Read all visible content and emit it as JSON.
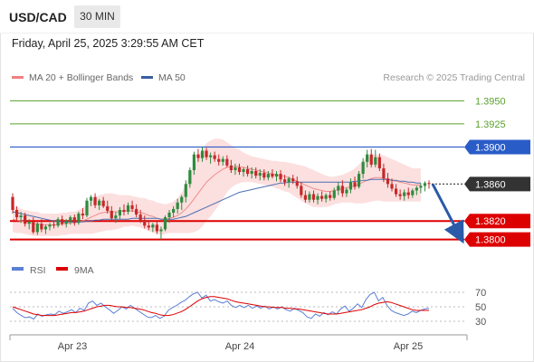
{
  "header": {
    "symbol": "USD/CAD",
    "interval": "30 MIN",
    "timestamp": "Friday, April 25, 2025 3:29:55 AM CET"
  },
  "legend": {
    "items": [
      {
        "label": "MA 20 + Bollinger Bands",
        "color": "#f08080"
      },
      {
        "label": "MA 50",
        "color": "#3a5fa0"
      }
    ],
    "credit": "Research © 2025 Trading Central"
  },
  "chart_data": [
    {
      "type": "candlestick",
      "title": "",
      "ylim": [
        1.3785,
        1.3965
      ],
      "x_ticks": [
        "Apr 23",
        "Apr 24",
        "Apr 25"
      ],
      "current_price": "1.3860",
      "levels": [
        {
          "value": 1.395,
          "label": "1.3950",
          "kind": "target",
          "color": "#5aa02c"
        },
        {
          "value": 1.3925,
          "label": "1.3925",
          "kind": "target",
          "color": "#5aa02c"
        },
        {
          "value": 1.39,
          "label": "1.3900",
          "kind": "pivot",
          "color": "#2a5cc8"
        },
        {
          "value": 1.382,
          "label": "1.3820",
          "kind": "support",
          "color": "#dd0000"
        },
        {
          "value": 1.38,
          "label": "1.3800",
          "kind": "support",
          "color": "#dd0000"
        }
      ],
      "projection": {
        "from": 1.386,
        "to": 1.38,
        "direction": "down"
      },
      "candles": [
        [
          1.3846,
          1.385,
          1.3828,
          1.3832
        ],
        [
          1.3832,
          1.3836,
          1.382,
          1.3824
        ],
        [
          1.3824,
          1.383,
          1.3818,
          1.3826
        ],
        [
          1.3826,
          1.3829,
          1.3814,
          1.3817
        ],
        [
          1.3817,
          1.3822,
          1.3811,
          1.3819
        ],
        [
          1.3819,
          1.3824,
          1.3806,
          1.3808
        ],
        [
          1.3808,
          1.382,
          1.3805,
          1.3817
        ],
        [
          1.3817,
          1.3822,
          1.3808,
          1.3811
        ],
        [
          1.3811,
          1.3816,
          1.3806,
          1.3814
        ],
        [
          1.3814,
          1.3818,
          1.381,
          1.3816
        ],
        [
          1.3816,
          1.382,
          1.3812,
          1.3815
        ],
        [
          1.3815,
          1.3824,
          1.3813,
          1.3822
        ],
        [
          1.3822,
          1.3826,
          1.3815,
          1.3817
        ],
        [
          1.3817,
          1.3822,
          1.3813,
          1.382
        ],
        [
          1.382,
          1.3826,
          1.3816,
          1.3824
        ],
        [
          1.3824,
          1.3827,
          1.3815,
          1.3818
        ],
        [
          1.3818,
          1.383,
          1.3816,
          1.3828
        ],
        [
          1.3828,
          1.3834,
          1.3822,
          1.3826
        ],
        [
          1.3826,
          1.3845,
          1.3824,
          1.3842
        ],
        [
          1.3842,
          1.3848,
          1.3836,
          1.3846
        ],
        [
          1.3846,
          1.385,
          1.3834,
          1.3837
        ],
        [
          1.3837,
          1.3844,
          1.3832,
          1.3842
        ],
        [
          1.3842,
          1.3846,
          1.3834,
          1.3836
        ],
        [
          1.3836,
          1.3842,
          1.3828,
          1.3831
        ],
        [
          1.3831,
          1.3836,
          1.382,
          1.3823
        ],
        [
          1.3823,
          1.383,
          1.3818,
          1.3826
        ],
        [
          1.3826,
          1.3835,
          1.3822,
          1.3832
        ],
        [
          1.3832,
          1.3838,
          1.3826,
          1.383
        ],
        [
          1.383,
          1.384,
          1.3827,
          1.3837
        ],
        [
          1.3837,
          1.3842,
          1.383,
          1.3833
        ],
        [
          1.3833,
          1.3838,
          1.3824,
          1.3827
        ],
        [
          1.3827,
          1.3832,
          1.3818,
          1.3821
        ],
        [
          1.3821,
          1.3826,
          1.3812,
          1.3815
        ],
        [
          1.3815,
          1.382,
          1.381,
          1.3813
        ],
        [
          1.3813,
          1.3818,
          1.3808,
          1.3816
        ],
        [
          1.3816,
          1.382,
          1.3806,
          1.3809
        ],
        [
          1.3809,
          1.3814,
          1.38,
          1.3811
        ],
        [
          1.3811,
          1.3826,
          1.3809,
          1.3824
        ],
        [
          1.3824,
          1.3832,
          1.3818,
          1.3829
        ],
        [
          1.3829,
          1.3836,
          1.3824,
          1.3833
        ],
        [
          1.3833,
          1.3844,
          1.3828,
          1.384
        ],
        [
          1.384,
          1.3848,
          1.3832,
          1.3846
        ],
        [
          1.3846,
          1.3864,
          1.384,
          1.386
        ],
        [
          1.386,
          1.3878,
          1.3856,
          1.3875
        ],
        [
          1.3875,
          1.3895,
          1.387,
          1.3892
        ],
        [
          1.3892,
          1.3898,
          1.3884,
          1.3888
        ],
        [
          1.3888,
          1.39,
          1.3884,
          1.3896
        ],
        [
          1.3896,
          1.3899,
          1.3886,
          1.3889
        ],
        [
          1.3889,
          1.3894,
          1.3882,
          1.3891
        ],
        [
          1.3891,
          1.3895,
          1.3884,
          1.3887
        ],
        [
          1.3887,
          1.3892,
          1.388,
          1.3884
        ],
        [
          1.3884,
          1.389,
          1.388,
          1.3887
        ],
        [
          1.3887,
          1.3891,
          1.3878,
          1.388
        ],
        [
          1.388,
          1.3886,
          1.3872,
          1.3875
        ],
        [
          1.3875,
          1.3882,
          1.387,
          1.3878
        ],
        [
          1.3878,
          1.3882,
          1.387,
          1.3873
        ],
        [
          1.3873,
          1.3878,
          1.3868,
          1.3876
        ],
        [
          1.3876,
          1.388,
          1.3868,
          1.3871
        ],
        [
          1.3871,
          1.3878,
          1.3866,
          1.3874
        ],
        [
          1.3874,
          1.3878,
          1.3866,
          1.3869
        ],
        [
          1.3869,
          1.3876,
          1.3864,
          1.3872
        ],
        [
          1.3872,
          1.3876,
          1.3864,
          1.3867
        ],
        [
          1.3867,
          1.3874,
          1.3864,
          1.3871
        ],
        [
          1.3871,
          1.3876,
          1.3866,
          1.3868
        ],
        [
          1.3868,
          1.3874,
          1.3863,
          1.3871
        ],
        [
          1.3871,
          1.3875,
          1.3862,
          1.3865
        ],
        [
          1.3865,
          1.387,
          1.3858,
          1.3862
        ],
        [
          1.3862,
          1.3868,
          1.3856,
          1.3866
        ],
        [
          1.3866,
          1.387,
          1.386,
          1.3863
        ],
        [
          1.3863,
          1.3868,
          1.3855,
          1.3858
        ],
        [
          1.3858,
          1.3862,
          1.3845,
          1.3848
        ],
        [
          1.3848,
          1.3853,
          1.384,
          1.3843
        ],
        [
          1.3843,
          1.3852,
          1.384,
          1.3849
        ],
        [
          1.3849,
          1.3853,
          1.384,
          1.3843
        ],
        [
          1.3843,
          1.385,
          1.3838,
          1.3847
        ],
        [
          1.3847,
          1.3852,
          1.3841,
          1.3844
        ],
        [
          1.3844,
          1.385,
          1.384,
          1.3848
        ],
        [
          1.3848,
          1.3852,
          1.3842,
          1.3845
        ],
        [
          1.3845,
          1.3856,
          1.3843,
          1.3853
        ],
        [
          1.3853,
          1.3862,
          1.3848,
          1.3858
        ],
        [
          1.3858,
          1.3864,
          1.3846,
          1.385
        ],
        [
          1.385,
          1.3856,
          1.3846,
          1.3854
        ],
        [
          1.3854,
          1.3866,
          1.385,
          1.3862
        ],
        [
          1.3862,
          1.3868,
          1.3854,
          1.3857
        ],
        [
          1.3857,
          1.3874,
          1.3855,
          1.3871
        ],
        [
          1.3871,
          1.3888,
          1.3866,
          1.3884
        ],
        [
          1.3884,
          1.3897,
          1.3878,
          1.3892
        ],
        [
          1.3892,
          1.3898,
          1.3878,
          1.3881
        ],
        [
          1.3881,
          1.3897,
          1.3878,
          1.3889
        ],
        [
          1.3889,
          1.3893,
          1.3874,
          1.3877
        ],
        [
          1.3877,
          1.3882,
          1.3862,
          1.3866
        ],
        [
          1.3866,
          1.3872,
          1.3856,
          1.386
        ],
        [
          1.386,
          1.3866,
          1.3852,
          1.3855
        ],
        [
          1.3855,
          1.386,
          1.3846,
          1.3849
        ],
        [
          1.3849,
          1.3854,
          1.3843,
          1.3847
        ],
        [
          1.3847,
          1.3854,
          1.3842,
          1.3851
        ],
        [
          1.3851,
          1.3856,
          1.3844,
          1.3848
        ],
        [
          1.3848,
          1.3855,
          1.3845,
          1.3853
        ],
        [
          1.3853,
          1.3858,
          1.3848,
          1.3856
        ],
        [
          1.3856,
          1.3861,
          1.385,
          1.3858
        ],
        [
          1.3858,
          1.3863,
          1.3852,
          1.3861
        ],
        [
          1.3861,
          1.3864,
          1.3855,
          1.386
        ]
      ],
      "ma20": [
        1.3822,
        1.3821,
        1.382,
        1.3819,
        1.3818,
        1.3817,
        1.3817,
        1.3816,
        1.3816,
        1.3816,
        1.3816,
        1.3816,
        1.3817,
        1.3817,
        1.3818,
        1.3818,
        1.3819,
        1.382,
        1.3822,
        1.3824,
        1.3826,
        1.3828,
        1.3829,
        1.383,
        1.383,
        1.383,
        1.383,
        1.3831,
        1.3831,
        1.3831,
        1.383,
        1.3829,
        1.3828,
        1.3826,
        1.3825,
        1.3823,
        1.3822,
        1.3822,
        1.3823,
        1.3824,
        1.3826,
        1.3829,
        1.3833,
        1.3838,
        1.3844,
        1.385,
        1.3856,
        1.3862,
        1.3866,
        1.387,
        1.3873,
        1.3876,
        1.3878,
        1.3879,
        1.3879,
        1.3879,
        1.3878,
        1.3877,
        1.3876,
        1.3875,
        1.3874,
        1.3873,
        1.3872,
        1.3871,
        1.387,
        1.3869,
        1.3868,
        1.3867,
        1.3865,
        1.3863,
        1.3861,
        1.3859,
        1.3857,
        1.3855,
        1.3854,
        1.3853,
        1.3852,
        1.3852,
        1.3853,
        1.3854,
        1.3855,
        1.3856,
        1.3857,
        1.3858,
        1.386,
        1.3862,
        1.3864,
        1.3866,
        1.3867,
        1.3867,
        1.3866,
        1.3865,
        1.3864,
        1.3863,
        1.3862,
        1.3861,
        1.386,
        1.3859,
        1.3859,
        1.3859
      ],
      "band_width": [
        0.0014,
        0.0014,
        0.0013,
        0.0013,
        0.0013,
        0.0013,
        0.0013,
        0.0012,
        0.0012,
        0.0012,
        0.0012,
        0.0012,
        0.0012,
        0.0012,
        0.0012,
        0.0012,
        0.0013,
        0.0014,
        0.0016,
        0.0018,
        0.0019,
        0.002,
        0.002,
        0.002,
        0.002,
        0.0019,
        0.0018,
        0.0017,
        0.0017,
        0.0016,
        0.0016,
        0.0016,
        0.0017,
        0.0017,
        0.0017,
        0.0017,
        0.0017,
        0.0016,
        0.0016,
        0.0017,
        0.0019,
        0.0022,
        0.0026,
        0.0031,
        0.0036,
        0.004,
        0.0042,
        0.0042,
        0.0041,
        0.0039,
        0.0036,
        0.0032,
        0.0027,
        0.0023,
        0.002,
        0.0018,
        0.0016,
        0.0015,
        0.0014,
        0.0014,
        0.0014,
        0.0014,
        0.0014,
        0.0014,
        0.0015,
        0.0015,
        0.0016,
        0.0016,
        0.0017,
        0.0018,
        0.0019,
        0.002,
        0.002,
        0.002,
        0.0019,
        0.0018,
        0.0017,
        0.0016,
        0.0015,
        0.0015,
        0.0015,
        0.0016,
        0.0017,
        0.0019,
        0.0021,
        0.0023,
        0.0024,
        0.0025,
        0.0025,
        0.0025,
        0.0025,
        0.0024,
        0.0023,
        0.0022,
        0.0021,
        0.002,
        0.0019,
        0.0018,
        0.0018,
        0.0018
      ],
      "ma50": [
        1.383,
        1.3829,
        1.3828,
        1.3827,
        1.3826,
        1.3825,
        1.3824,
        1.3823,
        1.3822,
        1.3821,
        1.382,
        1.382,
        1.3819,
        1.3819,
        1.3819,
        1.3819,
        1.3819,
        1.3819,
        1.382,
        1.382,
        1.3821,
        1.3821,
        1.3822,
        1.3822,
        1.3822,
        1.3822,
        1.3822,
        1.3822,
        1.3822,
        1.3823,
        1.3823,
        1.3823,
        1.3823,
        1.3823,
        1.3823,
        1.3823,
        1.3822,
        1.3822,
        1.3822,
        1.3822,
        1.3823,
        1.3824,
        1.3825,
        1.3827,
        1.3829,
        1.3831,
        1.3833,
        1.3835,
        1.3837,
        1.3839,
        1.3841,
        1.3843,
        1.3845,
        1.3847,
        1.3849,
        1.3851,
        1.3852,
        1.3853,
        1.3854,
        1.3855,
        1.3856,
        1.3857,
        1.3858,
        1.3859,
        1.386,
        1.3861,
        1.3861,
        1.3862,
        1.3862,
        1.3862,
        1.3862,
        1.3862,
        1.3862,
        1.3862,
        1.3862,
        1.3862,
        1.3862,
        1.3862,
        1.3862,
        1.3862,
        1.3862,
        1.3862,
        1.3862,
        1.3863,
        1.3863,
        1.3864,
        1.3864,
        1.3865,
        1.3865,
        1.3865,
        1.3865,
        1.3865,
        1.3864,
        1.3864,
        1.3863,
        1.3863,
        1.3862,
        1.3862,
        1.3861,
        1.3861
      ]
    },
    {
      "type": "line",
      "title": "",
      "ylim": [
        20,
        80
      ],
      "yticks": [
        "70",
        "50",
        "30"
      ],
      "series": [
        {
          "name": "RSI",
          "color": "#5b7fd4",
          "values": [
            48,
            42,
            38,
            35,
            36,
            33,
            40,
            37,
            39,
            40,
            39,
            44,
            41,
            43,
            46,
            42,
            48,
            45,
            55,
            58,
            52,
            55,
            50,
            46,
            41,
            45,
            50,
            47,
            52,
            48,
            44,
            40,
            36,
            35,
            38,
            34,
            37,
            45,
            49,
            52,
            56,
            59,
            64,
            68,
            70,
            62,
            66,
            58,
            60,
            57,
            55,
            58,
            52,
            49,
            52,
            49,
            52,
            48,
            51,
            48,
            51,
            47,
            50,
            47,
            50,
            46,
            44,
            48,
            45,
            42,
            36,
            34,
            40,
            37,
            42,
            39,
            43,
            40,
            47,
            51,
            44,
            48,
            54,
            49,
            60,
            67,
            70,
            58,
            63,
            52,
            45,
            42,
            40,
            38,
            40,
            44,
            42,
            45,
            47,
            48
          ]
        },
        {
          "name": "9MA",
          "color": "#dd0000",
          "values": [
            50,
            48,
            46,
            44,
            42,
            40,
            39,
            38,
            38,
            38,
            38,
            39,
            40,
            41,
            42,
            42,
            43,
            44,
            46,
            48,
            50,
            51,
            52,
            52,
            51,
            50,
            50,
            49,
            49,
            48,
            47,
            46,
            44,
            42,
            41,
            39,
            38,
            38,
            39,
            41,
            43,
            46,
            50,
            54,
            58,
            61,
            63,
            64,
            64,
            63,
            62,
            61,
            59,
            57,
            56,
            55,
            54,
            53,
            52,
            51,
            50,
            50,
            49,
            49,
            49,
            48,
            48,
            47,
            47,
            46,
            45,
            44,
            43,
            42,
            41,
            40,
            40,
            40,
            41,
            42,
            43,
            44,
            45,
            46,
            48,
            50,
            53,
            55,
            56,
            57,
            56,
            54,
            52,
            50,
            48,
            46,
            45,
            45,
            45,
            45
          ]
        }
      ]
    }
  ]
}
